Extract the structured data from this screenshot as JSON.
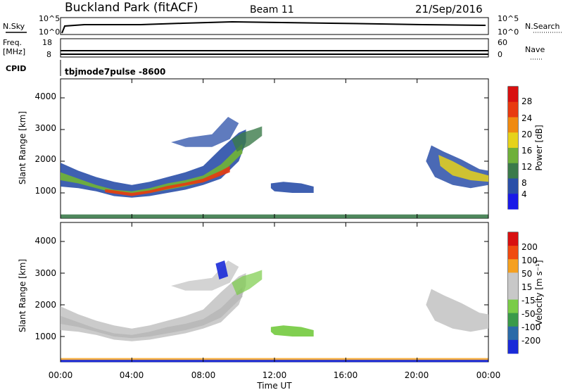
{
  "header": {
    "station": "Buckland Park (fitACF)",
    "beam": "Beam 11",
    "date": "21/Sep/2016"
  },
  "strips": {
    "nsky_label": "N.Sky",
    "nsky_ticks": [
      "10^5",
      "10^0"
    ],
    "nsearch_label": "N.Search",
    "nsearch_ticks": [
      "10^5",
      "10^0"
    ],
    "freq_label": "Freq.",
    "freq_unit": "[MHz]",
    "freq_ticks": [
      "18",
      "8"
    ],
    "nave_label": "Nave",
    "nave_ticks": [
      "60",
      "0"
    ],
    "cpid_label": "CPID",
    "cpid_value": "tbjmode7pulse -8600"
  },
  "chart_data": [
    {
      "type": "heatmap",
      "name": "power",
      "ylabel": "Slant Range [km]",
      "y_ticks": [
        "1000",
        "2000",
        "3000",
        "4000"
      ],
      "ylim": [
        200,
        4600
      ],
      "x_ticks": [
        "00:00",
        "04:00",
        "08:00",
        "12:00",
        "16:00",
        "20:00",
        "00:00"
      ],
      "xlim": [
        0,
        24
      ],
      "colorbar": {
        "label": "Power [dB]",
        "ticks": [
          "4",
          "8",
          "12",
          "16",
          "20",
          "24",
          "28"
        ],
        "range": [
          0,
          30
        ],
        "colors": [
          "#1a1ae8",
          "#2a4fa8",
          "#3b7a4a",
          "#6fb03a",
          "#e6d21a",
          "#f08a10",
          "#e83a10",
          "#d81010"
        ]
      }
    },
    {
      "type": "heatmap",
      "name": "velocity",
      "ylabel": "Slant Range [km]",
      "y_ticks": [
        "1000",
        "2000",
        "3000",
        "4000"
      ],
      "ylim": [
        200,
        4600
      ],
      "x_ticks": [
        "00:00",
        "04:00",
        "08:00",
        "12:00",
        "16:00",
        "20:00",
        "00:00"
      ],
      "xlim": [
        0,
        24
      ],
      "xlabel": "Time UT",
      "colorbar": {
        "label": "Velocity [m s⁻¹]",
        "ticks": [
          "200",
          "100",
          "50",
          "15",
          "-15",
          "-50",
          "-100",
          "-200"
        ],
        "range": [
          -250,
          250
        ],
        "colors": [
          "#d81010",
          "#f04a10",
          "#f5a020",
          "#c8c8c8",
          "#c8c8c8",
          "#7acc48",
          "#3a9a4a",
          "#2a6aa8",
          "#1a2ad8"
        ]
      }
    }
  ]
}
